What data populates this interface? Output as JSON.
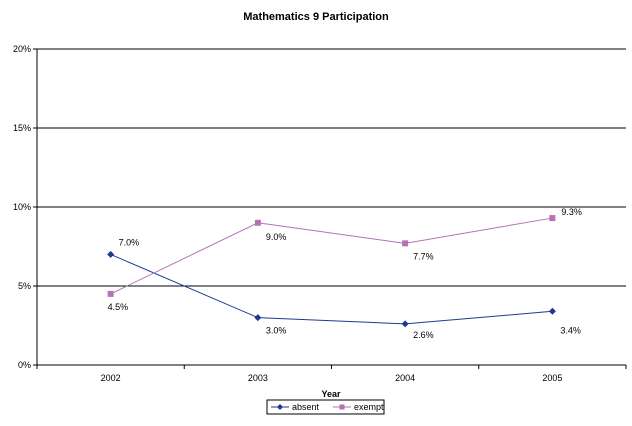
{
  "chart_data": {
    "type": "line",
    "title": "Mathematics 9 Participation",
    "xlabel": "Year",
    "ylabel": "",
    "categories": [
      "2002",
      "2003",
      "2004",
      "2005"
    ],
    "ylim": [
      0,
      20
    ],
    "yticks": [
      0,
      5,
      10,
      15,
      20
    ],
    "ytick_labels": [
      "0%",
      "5%",
      "10%",
      "15%",
      "20%"
    ],
    "grid": true,
    "legend_position": "bottom",
    "series": [
      {
        "name": "absent",
        "color": "#1f3a93",
        "marker": "diamond",
        "values": [
          7.0,
          3.0,
          2.6,
          3.4
        ],
        "labels": [
          "7.0%",
          "3.0%",
          "2.6%",
          "3.4%"
        ]
      },
      {
        "name": "exempt",
        "color": "#b572b5",
        "marker": "square",
        "values": [
          4.5,
          9.0,
          7.7,
          9.3
        ],
        "labels": [
          "4.5%",
          "9.0%",
          "7.7%",
          "9.3%"
        ]
      }
    ]
  }
}
